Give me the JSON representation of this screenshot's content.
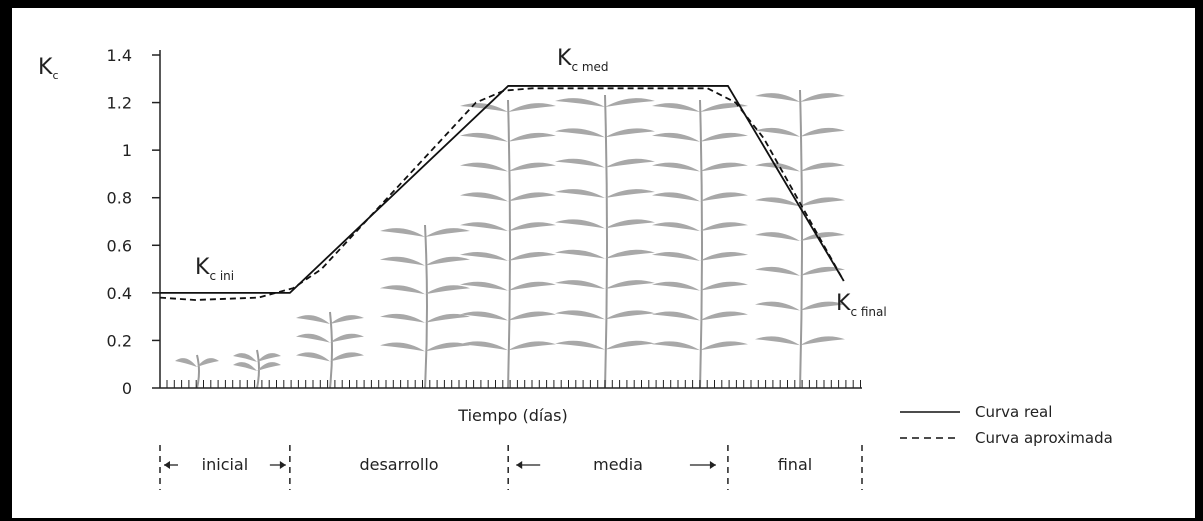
{
  "chart_data": {
    "type": "line",
    "y_label": {
      "main": "K",
      "sub": "c"
    },
    "x_label": "Tiempo (días)",
    "xlim": [
      0,
      100
    ],
    "ylim": [
      0,
      1.4
    ],
    "yticks": [
      0,
      0.2,
      0.4,
      0.6,
      0.8,
      1,
      1.2,
      1.4
    ],
    "series": [
      {
        "name": "Curva real",
        "color": "#111111",
        "dash": false,
        "x": [
          0,
          18.5,
          49.6,
          80.9,
          97.4
        ],
        "values": [
          0.4,
          0.4,
          1.27,
          1.27,
          0.45
        ]
      },
      {
        "name": "Curva aproximada",
        "color": "#111111",
        "dash": true,
        "x": [
          0,
          5,
          14,
          19,
          23,
          45,
          49,
          53,
          78,
          82,
          86,
          97.4
        ],
        "values": [
          0.38,
          0.37,
          0.38,
          0.42,
          0.5,
          1.2,
          1.25,
          1.26,
          1.26,
          1.2,
          1.05,
          0.45
        ]
      }
    ],
    "annotations": [
      {
        "main": "K",
        "sub": "c ini"
      },
      {
        "main": "K",
        "sub": "c med"
      },
      {
        "main": "K",
        "sub": "c final"
      }
    ],
    "stages": [
      {
        "label": "inicial",
        "start": 0,
        "end": 18.5
      },
      {
        "label": "desarrollo",
        "start": 18.5,
        "end": 49.6
      },
      {
        "label": "media",
        "start": 49.6,
        "end": 80.9
      },
      {
        "label": "final",
        "start": 80.9,
        "end": 100
      }
    ]
  }
}
